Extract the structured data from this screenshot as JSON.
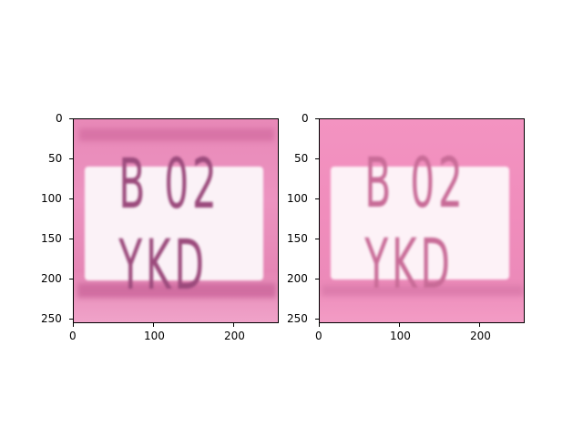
{
  "panels": [
    {
      "plate_text": "B 02 YKD",
      "background_color": "#e98bbb",
      "plate_color": "#fbf2f7",
      "text_color": "#9b4a7c",
      "x_ticks": [
        "0",
        "100",
        "200"
      ],
      "y_ticks": [
        "0",
        "50",
        "100",
        "150",
        "200",
        "250"
      ]
    },
    {
      "plate_text": "B 02 YKD",
      "background_color": "#f18fbd",
      "plate_color": "#fdf2f7",
      "text_color": "#c86b97",
      "x_ticks": [
        "0",
        "100",
        "200"
      ],
      "y_ticks": [
        "0",
        "50",
        "100",
        "150",
        "200",
        "250"
      ]
    }
  ]
}
